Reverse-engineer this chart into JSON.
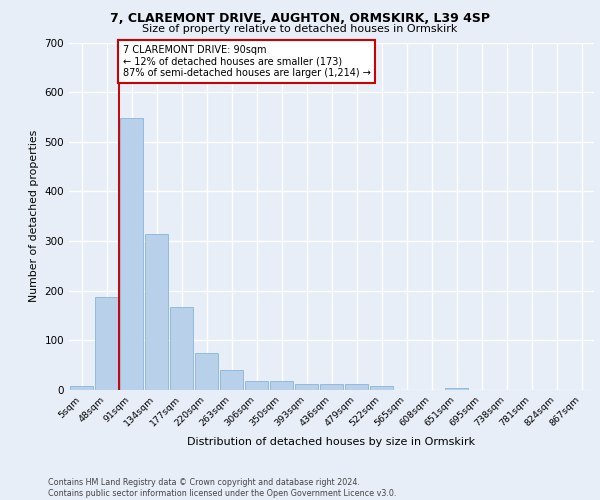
{
  "title1": "7, CLAREMONT DRIVE, AUGHTON, ORMSKIRK, L39 4SP",
  "title2": "Size of property relative to detached houses in Ormskirk",
  "xlabel": "Distribution of detached houses by size in Ormskirk",
  "ylabel": "Number of detached properties",
  "bin_labels": [
    "5sqm",
    "48sqm",
    "91sqm",
    "134sqm",
    "177sqm",
    "220sqm",
    "263sqm",
    "306sqm",
    "350sqm",
    "393sqm",
    "436sqm",
    "479sqm",
    "522sqm",
    "565sqm",
    "608sqm",
    "651sqm",
    "695sqm",
    "738sqm",
    "781sqm",
    "824sqm",
    "867sqm"
  ],
  "bar_values": [
    8,
    188,
    548,
    315,
    168,
    74,
    40,
    18,
    18,
    12,
    12,
    12,
    8,
    0,
    0,
    5,
    0,
    0,
    0,
    0,
    0
  ],
  "bar_color": "#b8d0ea",
  "bar_edge_color": "#7aaed4",
  "vline_x": 1.5,
  "vline_color": "#cc0000",
  "annotation_text": "7 CLAREMONT DRIVE: 90sqm\n← 12% of detached houses are smaller (173)\n87% of semi-detached houses are larger (1,214) →",
  "annotation_box_color": "#ffffff",
  "annotation_box_edge": "#cc0000",
  "ylim": [
    0,
    700
  ],
  "yticks": [
    0,
    100,
    200,
    300,
    400,
    500,
    600,
    700
  ],
  "footer": "Contains HM Land Registry data © Crown copyright and database right 2024.\nContains public sector information licensed under the Open Government Licence v3.0.",
  "bg_color": "#e8eef8",
  "plot_bg_color": "#e8eef8",
  "grid_color": "#ffffff"
}
